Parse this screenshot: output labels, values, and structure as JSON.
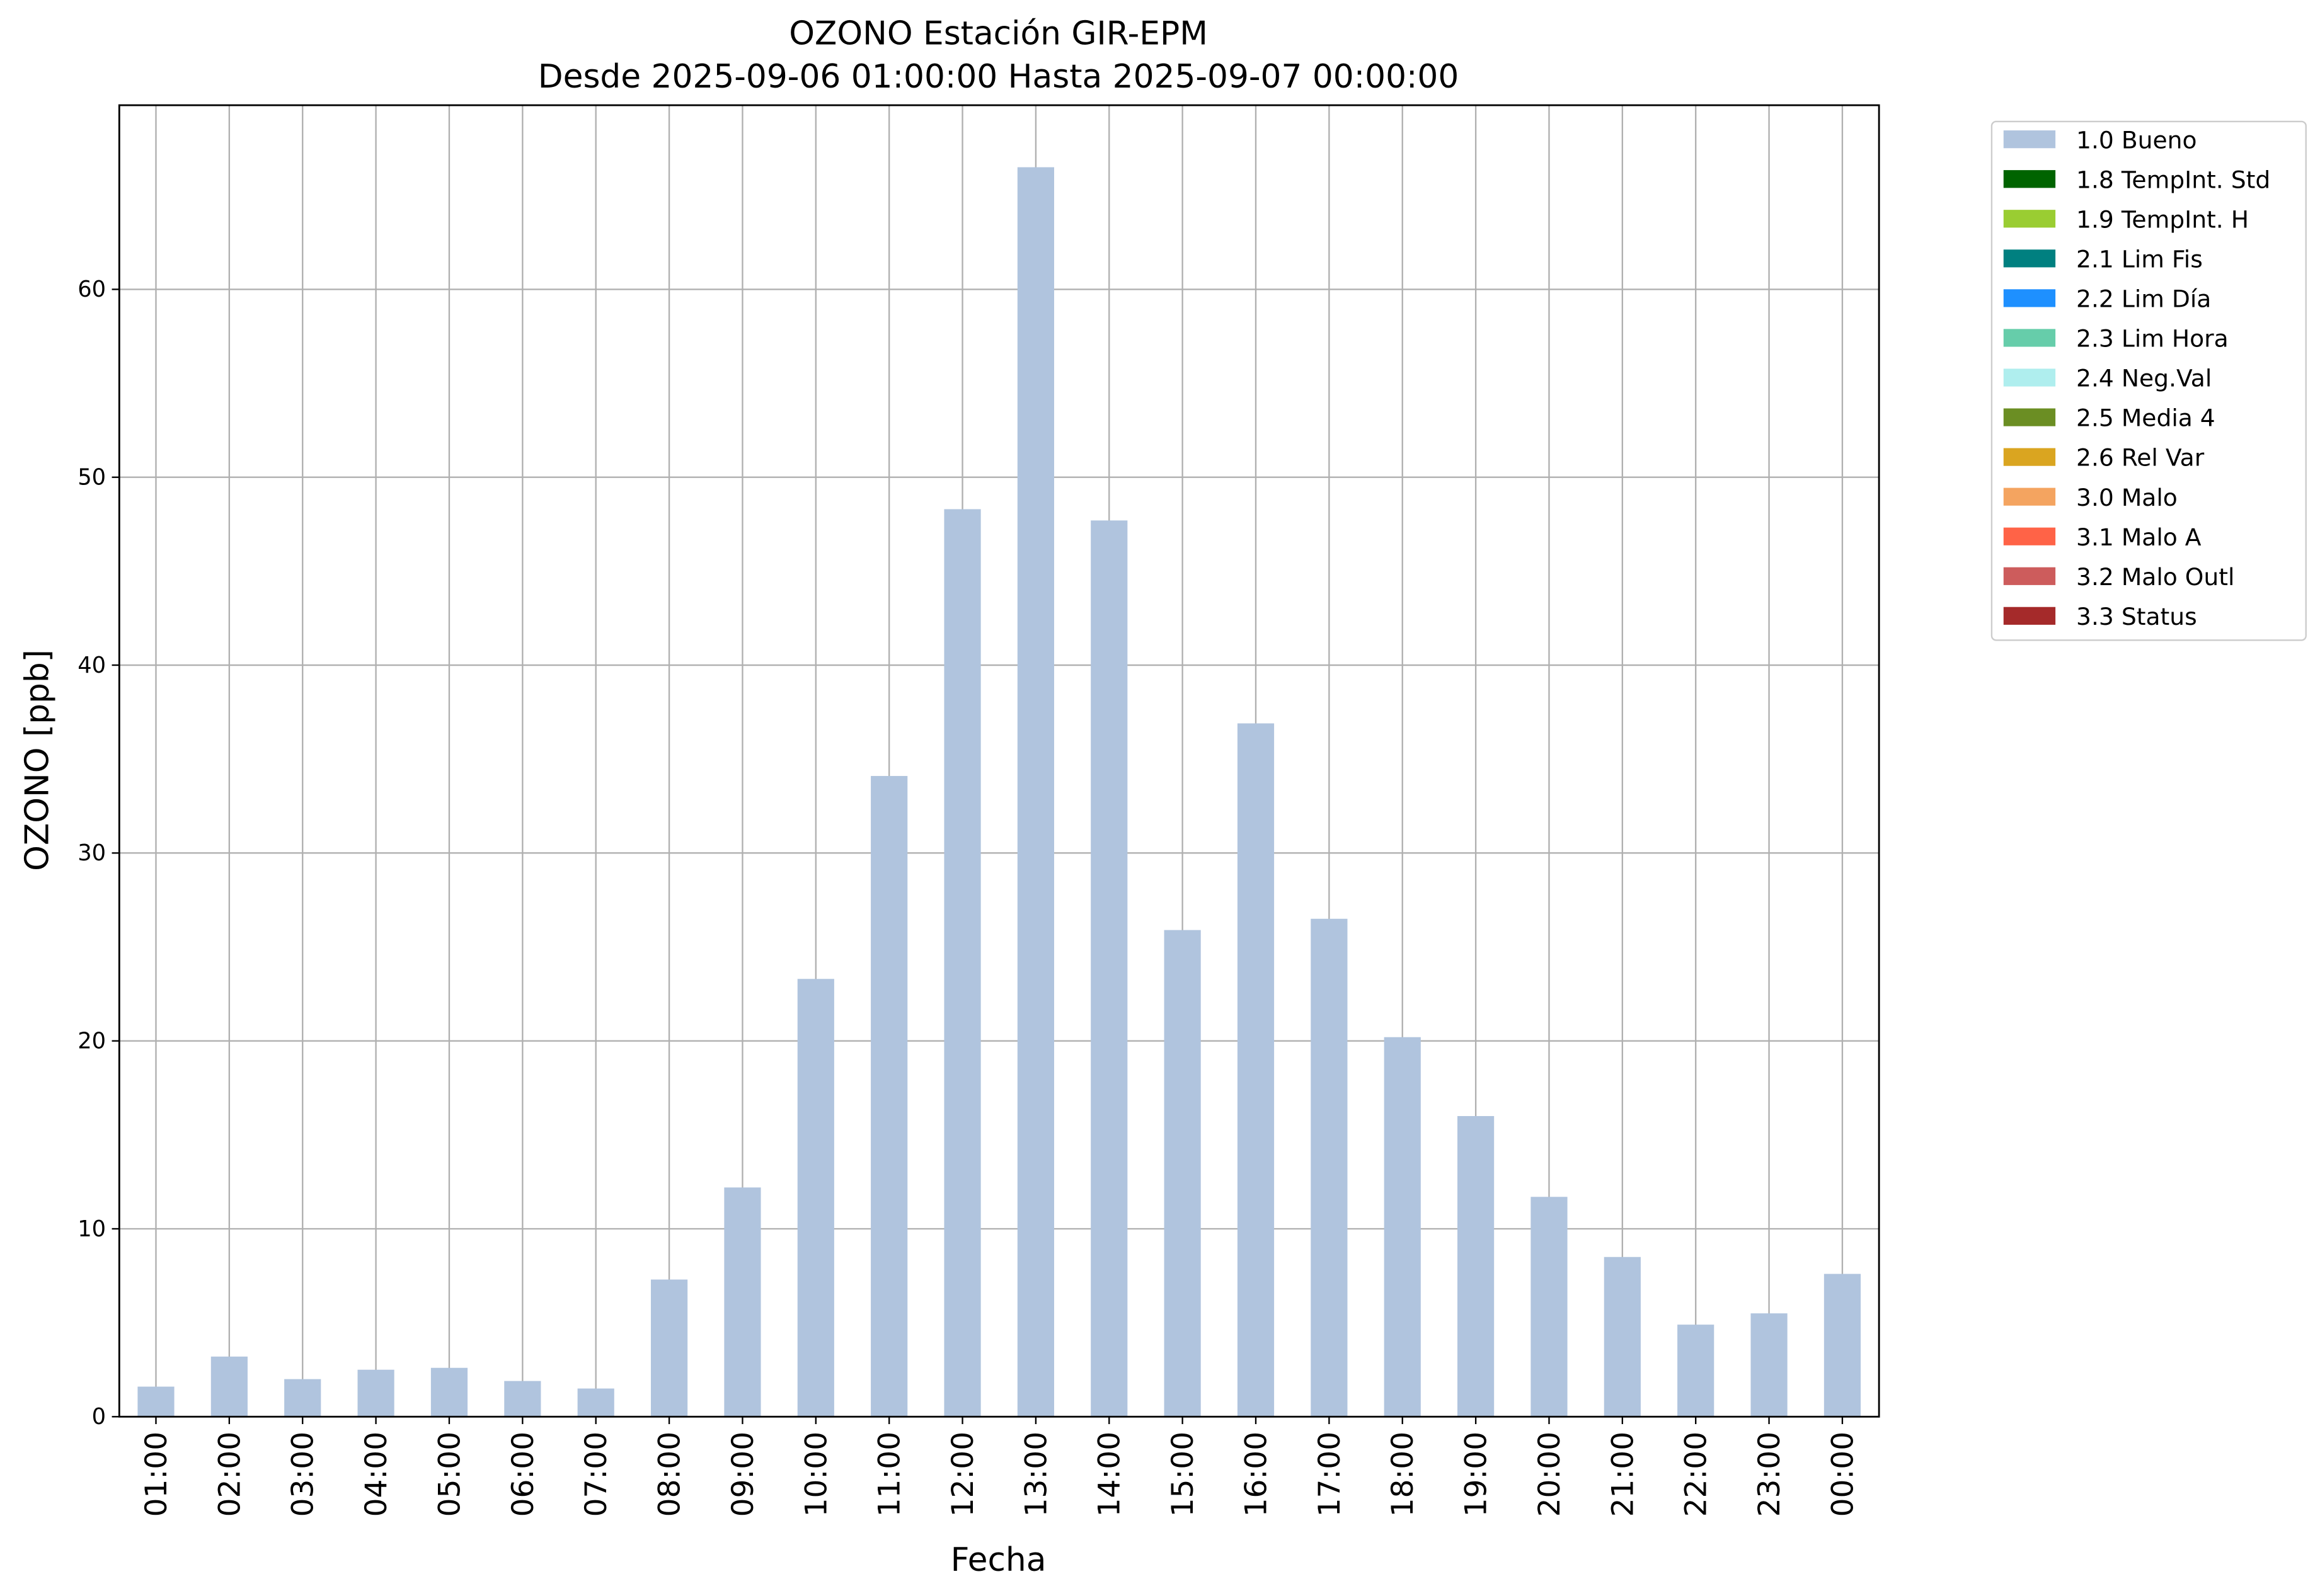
{
  "chart_data": {
    "type": "bar",
    "title": "OZONO Estación GIR-EPM",
    "subtitle": "Desde 2025-09-06 01:00:00 Hasta 2025-09-07 00:00:00",
    "x_label": "Fecha",
    "y_label": "OZONO [ppb]",
    "categories": [
      "01:00",
      "02:00",
      "03:00",
      "04:00",
      "05:00",
      "06:00",
      "07:00",
      "08:00",
      "09:00",
      "10:00",
      "11:00",
      "12:00",
      "13:00",
      "14:00",
      "15:00",
      "16:00",
      "17:00",
      "18:00",
      "19:00",
      "20:00",
      "21:00",
      "22:00",
      "23:00",
      "00:00"
    ],
    "series": [
      {
        "name": "1.0 Bueno",
        "color": "#b0c4de",
        "values": [
          1.6,
          3.2,
          2.0,
          2.5,
          2.6,
          1.9,
          1.5,
          7.3,
          12.2,
          23.3,
          34.1,
          48.3,
          66.5,
          47.7,
          25.9,
          36.9,
          26.5,
          20.2,
          16.0,
          11.7,
          8.5,
          4.9,
          5.5,
          7.6
        ]
      },
      {
        "name": "1.8 TempInt. Std",
        "color": "#006400"
      },
      {
        "name": "1.9 TempInt. H",
        "color": "#9acd32"
      },
      {
        "name": "2.1 Lim Fis",
        "color": "#008080"
      },
      {
        "name": "2.2 Lim Día",
        "color": "#1e90ff"
      },
      {
        "name": "2.3 Lim Hora",
        "color": "#66cdaa"
      },
      {
        "name": "2.4 Neg.Val",
        "color": "#afeeee"
      },
      {
        "name": "2.5 Media 4",
        "color": "#6b8e23"
      },
      {
        "name": "2.6 Rel Var",
        "color": "#daa520"
      },
      {
        "name": "3.0 Malo",
        "color": "#f4a460"
      },
      {
        "name": "3.1 Malo A",
        "color": "#ff6347"
      },
      {
        "name": "3.2 Malo Outl",
        "color": "#cd5c5c"
      },
      {
        "name": "3.3 Status",
        "color": "#a52a2a"
      }
    ],
    "ylim": [
      0,
      69.8
    ],
    "yticks": [
      0,
      10,
      20,
      30,
      40,
      50,
      60
    ],
    "grid": true,
    "legend_position": "outside-right"
  }
}
